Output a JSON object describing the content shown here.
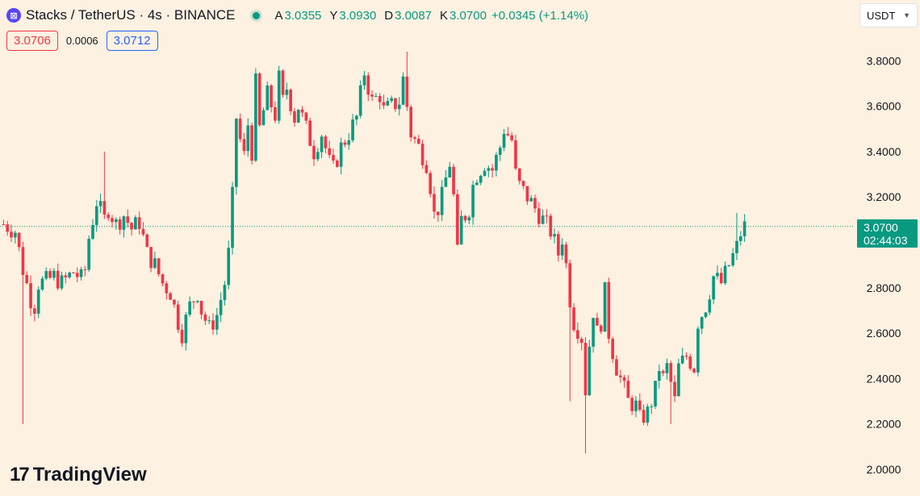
{
  "header": {
    "symbol_icon": "stacks-logo-icon",
    "symbol_icon_glyph": "⊠",
    "title": "Stacks / TetherUS · 4s · BINANCE",
    "ohlc": {
      "o_label": "A",
      "o_value": "3.0355",
      "h_label": "Y",
      "h_value": "3.0930",
      "l_label": "D",
      "l_value": "3.0087",
      "c_label": "K",
      "c_value": "3.0700"
    },
    "change": "+0.0345 (+1.14%)",
    "bid": "3.0706",
    "spread": "0.0006",
    "ask": "3.0712"
  },
  "currency": {
    "value": "USDT"
  },
  "price_tag": {
    "price": "3.0700",
    "countdown": "02:44:03"
  },
  "brand": {
    "name": "TradingView",
    "icon": "tradingview-logo-icon",
    "glyph": "17"
  },
  "colors": {
    "background": "#fdf1e1",
    "up": "#089981",
    "down": "#f23645",
    "bid": "#f23645",
    "ask": "#2962ff"
  },
  "chart_data": {
    "type": "candlestick",
    "title": "",
    "xlabel": "",
    "ylabel": "",
    "ylim": [
      1.95,
      3.88
    ],
    "y_ticks": [
      "3.8000",
      "3.6000",
      "3.4000",
      "3.2000",
      "2.8000",
      "2.6000",
      "2.4000",
      "2.2000",
      "2.0000"
    ],
    "last_price": 3.07,
    "grid": false,
    "close_path": [
      [
        0,
        3.08
      ],
      [
        3,
        3.05
      ],
      [
        5,
        2.88
      ],
      [
        7,
        2.75
      ],
      [
        8,
        2.72
      ],
      [
        9,
        2.82
      ],
      [
        11,
        2.83
      ],
      [
        13,
        2.85
      ],
      [
        15,
        2.82
      ],
      [
        18,
        2.87
      ],
      [
        20,
        2.84
      ],
      [
        21,
        2.88
      ],
      [
        22,
        3.02
      ],
      [
        24,
        3.18
      ],
      [
        26,
        3.1
      ],
      [
        27,
        3.15
      ],
      [
        29,
        3.08
      ],
      [
        31,
        3.12
      ],
      [
        33,
        3.06
      ],
      [
        35,
        3.09
      ],
      [
        37,
        2.95
      ],
      [
        39,
        2.9
      ],
      [
        41,
        2.82
      ],
      [
        43,
        2.78
      ],
      [
        45,
        2.65
      ],
      [
        46,
        2.6
      ],
      [
        48,
        2.72
      ],
      [
        50,
        2.78
      ],
      [
        51,
        2.7
      ],
      [
        53,
        2.62
      ],
      [
        55,
        2.68
      ],
      [
        57,
        2.82
      ],
      [
        58,
        2.95
      ],
      [
        59,
        3.2
      ],
      [
        60,
        3.55
      ],
      [
        61,
        3.45
      ],
      [
        62,
        3.38
      ],
      [
        63,
        3.52
      ],
      [
        64,
        3.4
      ],
      [
        65,
        3.7
      ],
      [
        66,
        3.5
      ],
      [
        67,
        3.58
      ],
      [
        68,
        3.65
      ],
      [
        70,
        3.56
      ],
      [
        71,
        3.72
      ],
      [
        72,
        3.62
      ],
      [
        73,
        3.68
      ],
      [
        75,
        3.55
      ],
      [
        76,
        3.6
      ],
      [
        78,
        3.5
      ],
      [
        80,
        3.4
      ],
      [
        82,
        3.48
      ],
      [
        84,
        3.35
      ],
      [
        85,
        3.32
      ],
      [
        87,
        3.42
      ],
      [
        89,
        3.48
      ],
      [
        91,
        3.55
      ],
      [
        93,
        3.75
      ],
      [
        95,
        3.62
      ],
      [
        97,
        3.65
      ],
      [
        98,
        3.58
      ],
      [
        100,
        3.6
      ],
      [
        102,
        3.62
      ],
      [
        103,
        3.72
      ],
      [
        104,
        3.6
      ],
      [
        105,
        3.48
      ],
      [
        107,
        3.42
      ],
      [
        109,
        3.35
      ],
      [
        110,
        3.25
      ],
      [
        111,
        3.12
      ],
      [
        112,
        3.15
      ],
      [
        113,
        3.2
      ],
      [
        114,
        3.28
      ],
      [
        115,
        3.35
      ],
      [
        116,
        3.2
      ],
      [
        117,
        2.95
      ],
      [
        118,
        3.1
      ],
      [
        119,
        3.12
      ],
      [
        120,
        3.15
      ],
      [
        121,
        3.25
      ],
      [
        122,
        3.3
      ],
      [
        124,
        3.35
      ],
      [
        126,
        3.32
      ],
      [
        128,
        3.42
      ],
      [
        129,
        3.5
      ],
      [
        131,
        3.45
      ],
      [
        132,
        3.3
      ],
      [
        133,
        3.25
      ],
      [
        135,
        3.2
      ],
      [
        137,
        3.15
      ],
      [
        139,
        3.1
      ],
      [
        141,
        3.05
      ],
      [
        143,
        2.95
      ],
      [
        144,
        3.02
      ],
      [
        145,
        2.9
      ],
      [
        146,
        2.75
      ],
      [
        147,
        2.65
      ],
      [
        148,
        2.62
      ],
      [
        149,
        2.58
      ],
      [
        150,
        2.35
      ],
      [
        151,
        2.55
      ],
      [
        152,
        2.7
      ],
      [
        153,
        2.6
      ],
      [
        154,
        2.65
      ],
      [
        155,
        2.78
      ],
      [
        156,
        2.6
      ],
      [
        157,
        2.52
      ],
      [
        158,
        2.45
      ],
      [
        160,
        2.35
      ],
      [
        161,
        2.3
      ],
      [
        163,
        2.28
      ],
      [
        164,
        2.22
      ],
      [
        166,
        2.25
      ],
      [
        168,
        2.35
      ],
      [
        169,
        2.45
      ],
      [
        170,
        2.4
      ],
      [
        171,
        2.45
      ],
      [
        172,
        2.38
      ],
      [
        173,
        2.3
      ],
      [
        174,
        2.45
      ],
      [
        176,
        2.5
      ],
      [
        178,
        2.45
      ],
      [
        179,
        2.65
      ],
      [
        181,
        2.72
      ],
      [
        183,
        2.85
      ],
      [
        185,
        2.82
      ],
      [
        187,
        2.9
      ],
      [
        189,
        2.98
      ],
      [
        190,
        3.04
      ],
      [
        191,
        3.07
      ]
    ],
    "wicks": [
      {
        "x": 5,
        "low": 2.2
      },
      {
        "x": 26,
        "high": 3.4
      },
      {
        "x": 104,
        "high": 3.84
      },
      {
        "x": 146,
        "low": 2.3
      },
      {
        "x": 150,
        "low": 2.07
      },
      {
        "x": 172,
        "low": 2.2
      },
      {
        "x": 189,
        "high": 3.13
      }
    ],
    "candles_count": 192
  }
}
